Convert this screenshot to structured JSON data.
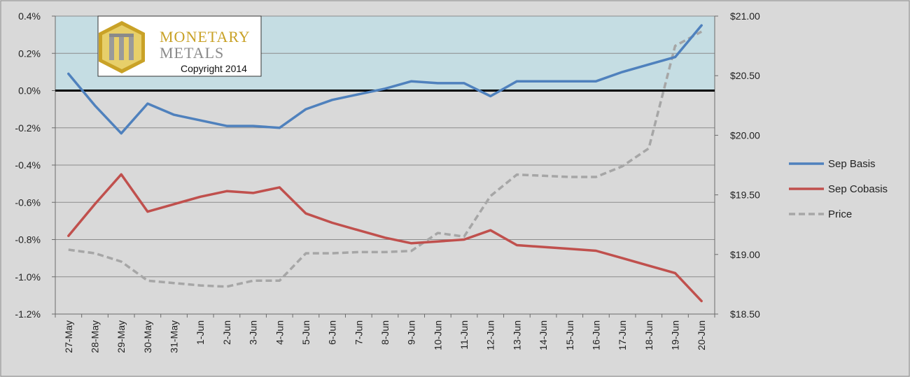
{
  "logo": {
    "line1": "MONETARY",
    "line2": "METALS",
    "copyright": "Copyright 2014",
    "gold": "#c9a227",
    "gray": "#8a8a8a"
  },
  "chart_data": {
    "type": "line",
    "categories": [
      "27-May",
      "28-May",
      "29-May",
      "30-May",
      "31-May",
      "1-Jun",
      "2-Jun",
      "3-Jun",
      "4-Jun",
      "5-Jun",
      "6-Jun",
      "7-Jun",
      "8-Jun",
      "9-Jun",
      "10-Jun",
      "11-Jun",
      "12-Jun",
      "13-Jun",
      "14-Jun",
      "15-Jun",
      "16-Jun",
      "17-Jun",
      "18-Jun",
      "19-Jun",
      "20-Jun"
    ],
    "left_axis": {
      "ylim": [
        -1.2,
        0.4
      ],
      "ticks": [
        0.4,
        0.2,
        0.0,
        -0.2,
        -0.4,
        -0.6,
        -0.8,
        -1.0,
        -1.2
      ],
      "tick_labels": [
        "0.4%",
        "0.2%",
        "0.0%",
        "-0.2%",
        "-0.4%",
        "-0.6%",
        "-0.8%",
        "-1.0%",
        "-1.2%"
      ],
      "shaded_above": 0.0,
      "shade_color": "#c5dde3"
    },
    "right_axis": {
      "ylim": [
        18.5,
        21.0
      ],
      "ticks": [
        21.0,
        20.5,
        20.0,
        19.5,
        19.0,
        18.5
      ],
      "tick_labels": [
        "$21.00",
        "$20.50",
        "$20.00",
        "$19.50",
        "$19.00",
        "$18.50"
      ]
    },
    "grid": true,
    "legend_position": "right",
    "series": [
      {
        "name": "Sep Basis",
        "axis": "left",
        "color": "#4f81bd",
        "style": "solid",
        "values": [
          0.09,
          -0.08,
          -0.23,
          -0.07,
          -0.13,
          -0.16,
          -0.19,
          -0.19,
          -0.2,
          -0.1,
          -0.05,
          -0.02,
          0.01,
          0.05,
          0.04,
          0.04,
          -0.03,
          0.05,
          0.05,
          0.05,
          0.05,
          0.1,
          0.14,
          0.18,
          0.35
        ]
      },
      {
        "name": "Sep Cobasis",
        "axis": "left",
        "color": "#c0504d",
        "style": "solid",
        "values": [
          -0.78,
          -0.61,
          -0.45,
          -0.65,
          -0.61,
          -0.57,
          -0.54,
          -0.55,
          -0.52,
          -0.66,
          -0.71,
          -0.75,
          -0.79,
          -0.82,
          -0.81,
          -0.8,
          -0.75,
          -0.83,
          -0.84,
          -0.85,
          -0.86,
          -0.9,
          -0.94,
          -0.98,
          -1.13
        ]
      },
      {
        "name": "Price",
        "axis": "right",
        "color": "#a6a6a6",
        "style": "dashed",
        "values": [
          19.04,
          19.01,
          18.94,
          18.78,
          18.76,
          18.74,
          18.73,
          18.78,
          18.78,
          19.01,
          19.01,
          19.02,
          19.02,
          19.03,
          19.18,
          19.15,
          19.49,
          19.67,
          19.66,
          19.65,
          19.65,
          19.74,
          19.89,
          20.75,
          20.87
        ]
      }
    ]
  }
}
